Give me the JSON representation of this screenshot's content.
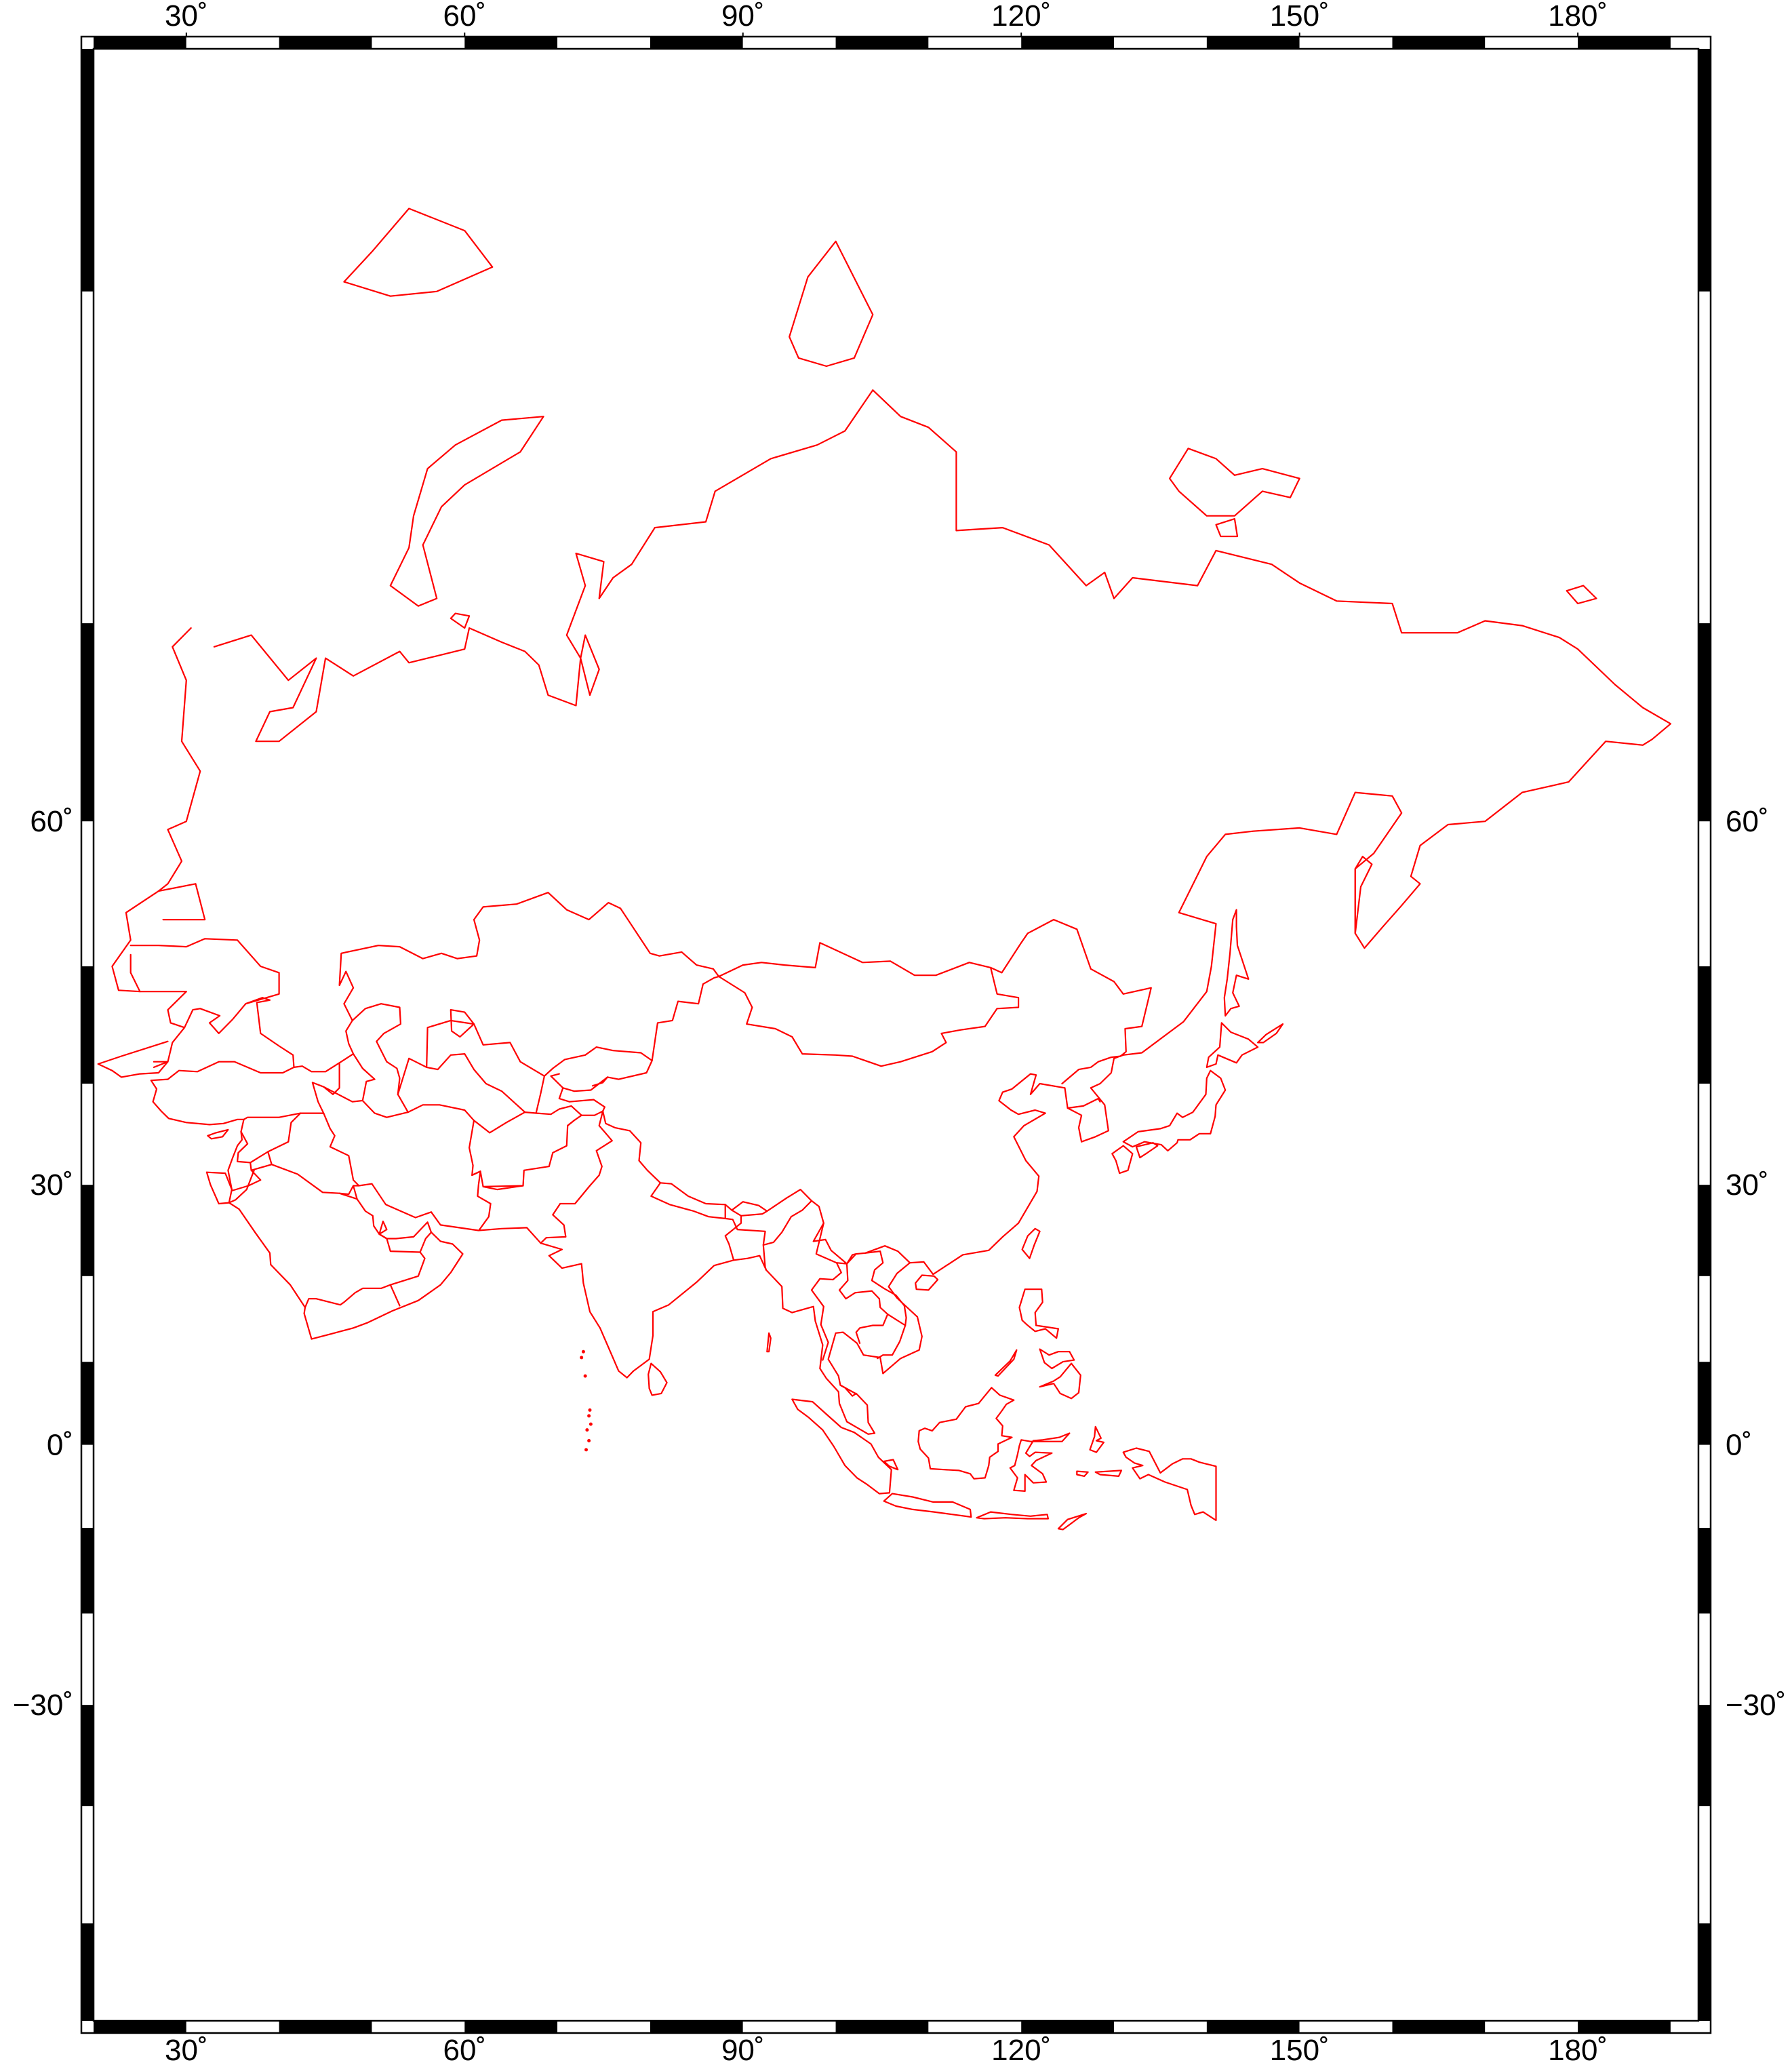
{
  "map": {
    "projection": "mercator",
    "region": {
      "lon_min": 20,
      "lon_max": 193,
      "lat_min": -57,
      "lat_max": 84
    },
    "coastline_color": "#ff0000",
    "frame_color": "#000000",
    "background_color": "#ffffff",
    "frame_style": "fancy-checkered",
    "longitude_ticks": [
      {
        "value": 30,
        "label": "30˚"
      },
      {
        "value": 60,
        "label": "60˚"
      },
      {
        "value": 90,
        "label": "90˚"
      },
      {
        "value": 120,
        "label": "120˚"
      },
      {
        "value": 150,
        "label": "150˚"
      },
      {
        "value": 180,
        "label": "180˚"
      }
    ],
    "latitude_ticks": [
      {
        "value": 60,
        "label": "60˚"
      },
      {
        "value": 30,
        "label": "30˚"
      },
      {
        "value": 0,
        "label": "0˚"
      },
      {
        "value": -30,
        "label": "−30˚"
      }
    ],
    "features": [
      "Asia coastlines",
      "national borders",
      "Indonesia",
      "Japan",
      "Arabian Peninsula",
      "Indian subcontinent",
      "Novaya Zemlya",
      "Severnaya Zemlya",
      "New Siberian Islands"
    ]
  }
}
